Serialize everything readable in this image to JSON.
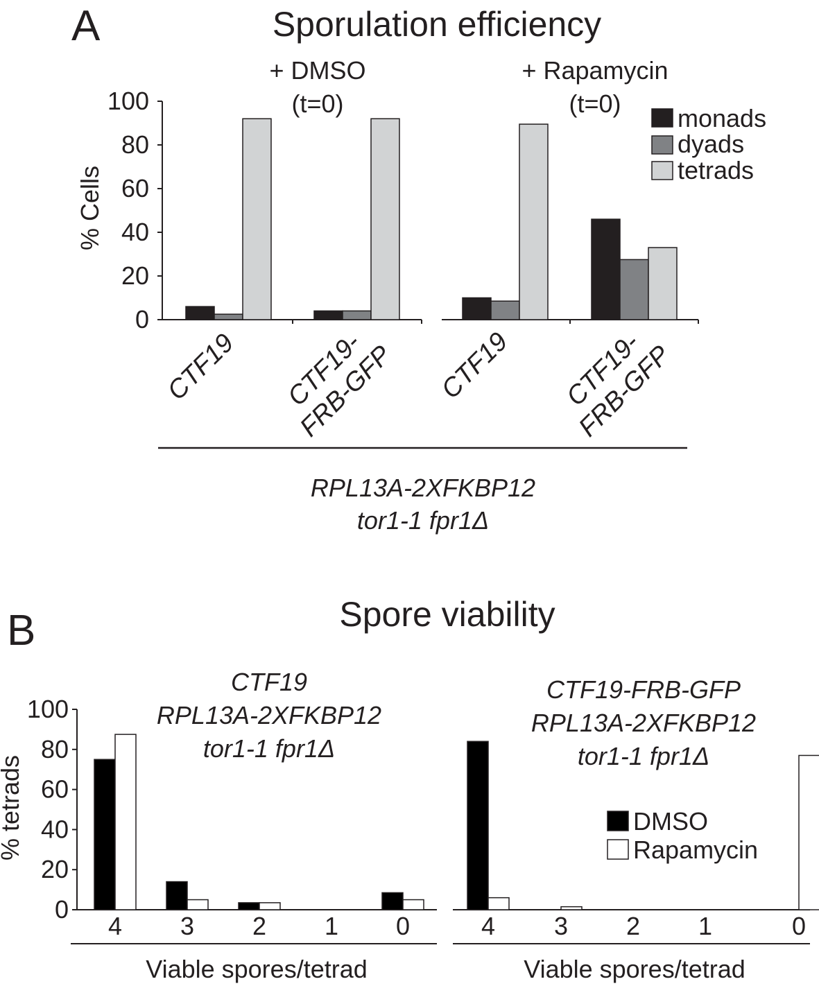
{
  "colors": {
    "monads": "#231f20",
    "dyads": "#808285",
    "tetrads": "#d1d3d4",
    "dmso": "#000000",
    "rapamycin": "#ffffff",
    "stroke": "#231f20"
  },
  "chart_data": [
    {
      "type": "bar",
      "panel_label": "A",
      "title": "Sporulation efficiency",
      "ylabel": "% Cells",
      "ylim": [
        0,
        100
      ],
      "yticks": [
        0,
        20,
        40,
        60,
        80,
        100
      ],
      "legend": {
        "placement": "top-right",
        "entries": [
          "monads",
          "dyads",
          "tetrads"
        ]
      },
      "groups": [
        {
          "label_lines": [
            "+ DMSO",
            "(t=0)"
          ],
          "categories": [
            [
              "CTF19"
            ],
            [
              "CTF19-",
              "FRB-GFP"
            ]
          ]
        },
        {
          "label_lines": [
            "+ Rapamycin",
            "(t=0)"
          ],
          "categories": [
            [
              "CTF19"
            ],
            [
              "CTF19-",
              "FRB-GFP"
            ]
          ]
        }
      ],
      "series": [
        {
          "name": "monads",
          "values": [
            6,
            4,
            10,
            46
          ]
        },
        {
          "name": "dyads",
          "values": [
            2.5,
            4,
            8.5,
            27.5
          ]
        },
        {
          "name": "tetrads",
          "values": [
            92,
            92,
            89.5,
            33
          ]
        }
      ],
      "strain_lines": [
        "RPL13A-2XFKBP12",
        "tor1-1 fpr1Δ"
      ]
    },
    {
      "type": "bar",
      "panel_label": "B",
      "title": "Spore viability",
      "ylabel": "% tetrads",
      "ylim": [
        0,
        100
      ],
      "yticks": [
        0,
        20,
        40,
        60,
        80,
        100
      ],
      "legend": {
        "placement": "right",
        "entries": [
          "DMSO",
          "Rapamycin"
        ]
      },
      "xlabel": "Viable spores/tetrad",
      "subplots": [
        {
          "strain_lines": [
            "CTF19",
            "RPL13A-2XFKBP12",
            "tor1-1 fpr1Δ"
          ],
          "categories": [
            "4",
            "3",
            "2",
            "1",
            "0"
          ],
          "series": [
            {
              "name": "DMSO",
              "values": [
                75,
                14,
                3.5,
                0,
                8.5
              ]
            },
            {
              "name": "Rapamycin",
              "values": [
                87.5,
                5,
                3.5,
                0,
                5
              ]
            }
          ]
        },
        {
          "strain_lines": [
            "CTF19-FRB-GFP",
            "RPL13A-2XFKBP12",
            "tor1-1 fpr1Δ"
          ],
          "categories": [
            "4",
            "3",
            "2",
            "1",
            "0"
          ],
          "series": [
            {
              "name": "DMSO",
              "values": [
                84,
                0,
                0,
                0,
                0
              ]
            },
            {
              "name": "Rapamycin",
              "values": [
                6,
                1.5,
                0,
                0,
                77
              ]
            }
          ]
        }
      ]
    }
  ]
}
